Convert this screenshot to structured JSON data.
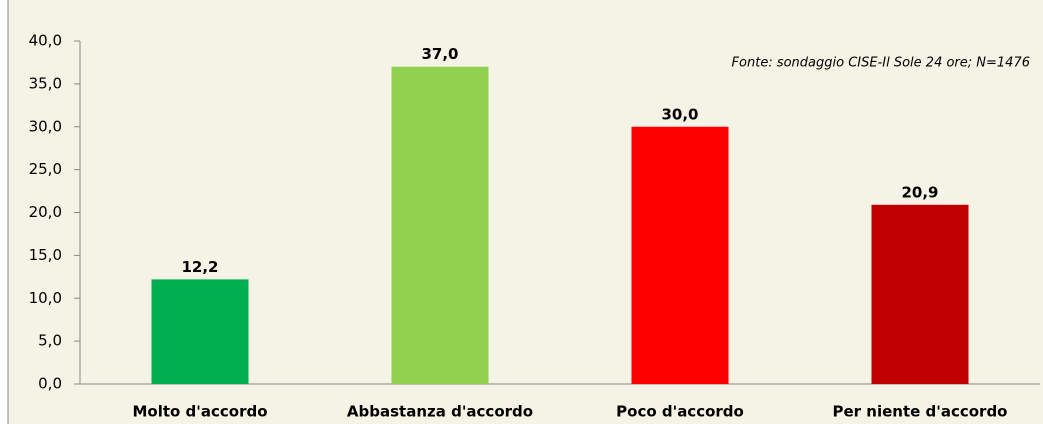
{
  "chart_data": {
    "type": "bar",
    "categories": [
      "Molto d'accordo",
      "Abbastanza  d'accordo",
      "Poco d'accordo",
      "Per niente d'accordo"
    ],
    "values": [
      12.2,
      37.0,
      30.0,
      20.9
    ],
    "value_labels": [
      "12,2",
      "37,0",
      "30,0",
      "20,9"
    ],
    "colors": [
      "#00b050",
      "#92d050",
      "#ff0000",
      "#c00000"
    ],
    "ylim": [
      0,
      40
    ],
    "yticks": [
      {
        "value": 0,
        "label": "0,0"
      },
      {
        "value": 5,
        "label": "5,0"
      },
      {
        "value": 10,
        "label": "10,0"
      },
      {
        "value": 15,
        "label": "15,0"
      },
      {
        "value": 20,
        "label": "20,0"
      },
      {
        "value": 25,
        "label": "25,0"
      },
      {
        "value": 30,
        "label": "30,0"
      },
      {
        "value": 35,
        "label": "35,0"
      },
      {
        "value": 40,
        "label": "40,0"
      }
    ],
    "annotation": "Fonte: sondaggio CISE-Il Sole 24 ore; N=1476",
    "grid": false
  }
}
